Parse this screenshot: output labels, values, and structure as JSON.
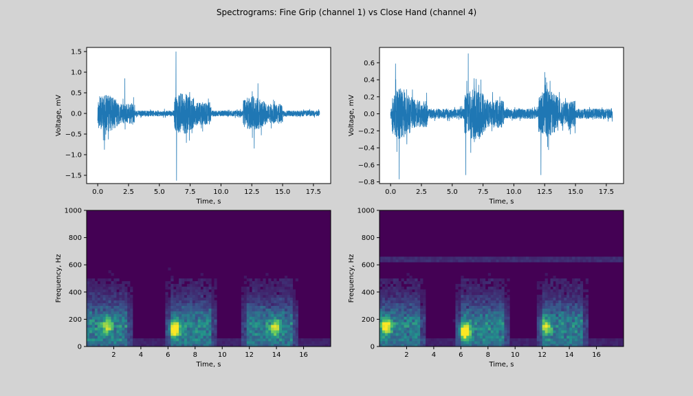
{
  "figure": {
    "title": "Spectrograms: Fine Grip (channel 1) vs Close Hand (channel 4)",
    "background": "#d3d3d3"
  },
  "colors": {
    "line": "#1f77b4",
    "viridis_low": "#440154",
    "viridis_mid": "#21918c",
    "viridis_high": "#fde725"
  },
  "chart_data": [
    {
      "id": "signal-ch1",
      "type": "line",
      "xlabel": "Time, s",
      "ylabel": "Voltage, mV",
      "xlim": [
        -0.9,
        18.9
      ],
      "ylim": [
        -1.7,
        1.6
      ],
      "xticks": [
        0.0,
        2.5,
        5.0,
        7.5,
        10.0,
        12.5,
        15.0,
        17.5
      ],
      "xtick_labels": [
        "0.0",
        "2.5",
        "5.0",
        "7.5",
        "10.0",
        "12.5",
        "15.0",
        "17.5"
      ],
      "yticks": [
        -1.5,
        -1.0,
        -0.5,
        0.0,
        0.5,
        1.0,
        1.5
      ],
      "ytick_labels": [
        "−1.5",
        "−1.0",
        "−0.5",
        "0.0",
        "0.5",
        "1.0",
        "1.5"
      ],
      "duration_s": 18.0,
      "bursts": [
        {
          "start": 0.0,
          "end": 3.0,
          "amplitude": 0.45
        },
        {
          "start": 6.2,
          "end": 9.2,
          "amplitude": 0.5
        },
        {
          "start": 11.8,
          "end": 15.0,
          "amplitude": 0.42
        }
      ],
      "baseline_amplitude": 0.07,
      "peaks": [
        {
          "x": 6.35,
          "y": 1.5
        },
        {
          "x": 6.4,
          "y": -1.63
        },
        {
          "x": 2.2,
          "y": 0.85
        },
        {
          "x": 0.55,
          "y": -0.88
        },
        {
          "x": 12.7,
          "y": -0.85
        },
        {
          "x": 13.0,
          "y": 0.73
        }
      ]
    },
    {
      "id": "signal-ch4",
      "type": "line",
      "xlabel": "Time, s",
      "ylabel": "Voltage, mV",
      "xlim": [
        -0.9,
        18.9
      ],
      "ylim": [
        -0.82,
        0.78
      ],
      "xticks": [
        0.0,
        2.5,
        5.0,
        7.5,
        10.0,
        12.5,
        15.0,
        17.5
      ],
      "xtick_labels": [
        "0.0",
        "2.5",
        "5.0",
        "7.5",
        "10.0",
        "12.5",
        "15.0",
        "17.5"
      ],
      "yticks": [
        -0.8,
        -0.6,
        -0.4,
        -0.2,
        0.0,
        0.2,
        0.4,
        0.6
      ],
      "ytick_labels": [
        "−0.8",
        "−0.6",
        "−0.4",
        "−0.2",
        "0.0",
        "0.2",
        "0.4",
        "0.6"
      ],
      "duration_s": 18.0,
      "bursts": [
        {
          "start": 0.1,
          "end": 3.0,
          "amplitude": 0.3
        },
        {
          "start": 6.0,
          "end": 9.2,
          "amplitude": 0.3
        },
        {
          "start": 12.0,
          "end": 15.0,
          "amplitude": 0.28
        }
      ],
      "baseline_amplitude": 0.06,
      "peaks": [
        {
          "x": 0.4,
          "y": 0.59
        },
        {
          "x": 0.7,
          "y": -0.77
        },
        {
          "x": 6.3,
          "y": 0.71
        },
        {
          "x": 6.1,
          "y": -0.72
        },
        {
          "x": 12.2,
          "y": -0.72
        },
        {
          "x": 12.5,
          "y": 0.49
        }
      ]
    },
    {
      "id": "spectrogram-ch1",
      "type": "heatmap",
      "xlabel": "Time, s",
      "ylabel": "Frequency, Hz",
      "xlim": [
        0.0,
        18.0
      ],
      "ylim": [
        0,
        1000
      ],
      "xticks": [
        2,
        4,
        6,
        8,
        10,
        12,
        14,
        16
      ],
      "xtick_labels": [
        "2",
        "4",
        "6",
        "8",
        "10",
        "12",
        "14",
        "16"
      ],
      "yticks": [
        0,
        200,
        400,
        600,
        800,
        1000
      ],
      "ytick_labels": [
        "0",
        "200",
        "400",
        "600",
        "800",
        "1000"
      ],
      "colormap": "viridis",
      "bursts": [
        {
          "start": 0.0,
          "end": 3.0
        },
        {
          "start": 6.2,
          "end": 9.2
        },
        {
          "start": 11.8,
          "end": 15.2
        }
      ],
      "hotspots": [
        {
          "t": 6.5,
          "f": 130,
          "level": 0.95
        },
        {
          "t": 1.5,
          "f": 150,
          "level": 0.55
        },
        {
          "t": 13.9,
          "f": 140,
          "level": 0.6
        }
      ],
      "noise_line_hz": null
    },
    {
      "id": "spectrogram-ch4",
      "type": "heatmap",
      "xlabel": "Time, s",
      "ylabel": "Frequency, Hz",
      "xlim": [
        0.0,
        18.0
      ],
      "ylim": [
        0,
        1000
      ],
      "xticks": [
        2,
        4,
        6,
        8,
        10,
        12,
        14,
        16
      ],
      "xtick_labels": [
        "2",
        "4",
        "6",
        "8",
        "10",
        "12",
        "14",
        "16"
      ],
      "yticks": [
        0,
        200,
        400,
        600,
        800,
        1000
      ],
      "ytick_labels": [
        "0",
        "200",
        "400",
        "600",
        "800",
        "1000"
      ],
      "colormap": "viridis",
      "bursts": [
        {
          "start": 0.1,
          "end": 3.0
        },
        {
          "start": 6.0,
          "end": 9.2
        },
        {
          "start": 12.0,
          "end": 15.0
        }
      ],
      "hotspots": [
        {
          "t": 6.3,
          "f": 110,
          "level": 0.95
        },
        {
          "t": 0.5,
          "f": 150,
          "level": 0.75
        },
        {
          "t": 12.3,
          "f": 150,
          "level": 0.55
        }
      ],
      "noise_line_hz": 640
    }
  ]
}
